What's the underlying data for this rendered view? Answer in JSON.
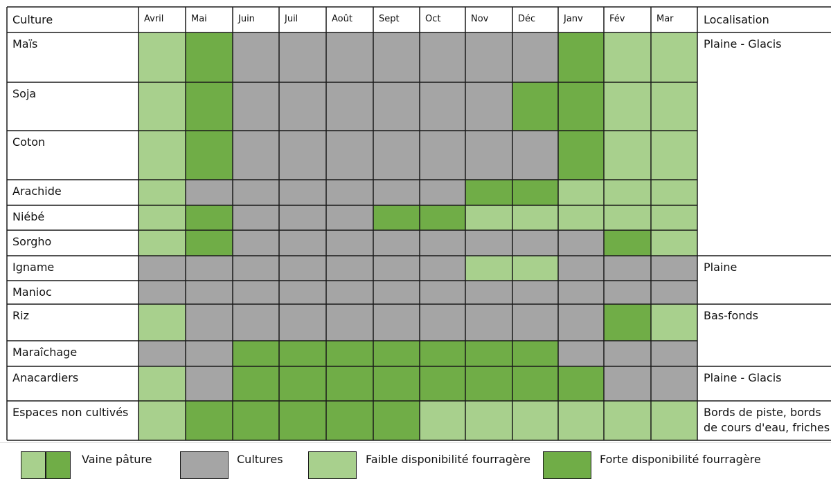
{
  "colors": {
    "light": "#a8d08d",
    "dark": "#70ad47",
    "grey": "#a5a5a5",
    "empty": "#ffffff",
    "border": "#1a1a1a"
  },
  "header": {
    "culture": "Culture",
    "localisation": "Localisation",
    "months": [
      "Avril",
      "Mai",
      "Juin",
      "Juil",
      "Août",
      "Sept",
      "Oct",
      "Nov",
      "Déc",
      "Janv",
      "Fév",
      "Mar"
    ]
  },
  "rows": [
    {
      "name": "Maïs",
      "cells": [
        "L",
        "D",
        "G",
        "G",
        "G",
        "G",
        "G",
        "G",
        "G",
        "D",
        "L",
        "L"
      ]
    },
    {
      "name": "Soja",
      "cells": [
        "L",
        "D",
        "G",
        "G",
        "G",
        "G",
        "G",
        "G",
        "D",
        "D",
        "L",
        "L"
      ]
    },
    {
      "name": "Coton",
      "cells": [
        "L",
        "D",
        "G",
        "G",
        "G",
        "G",
        "G",
        "G",
        "G",
        "D",
        "L",
        "L"
      ]
    },
    {
      "name": "Arachide",
      "cells": [
        "L",
        "G",
        "G",
        "G",
        "G",
        "G",
        "G",
        "D",
        "D",
        "L",
        "L",
        "L"
      ]
    },
    {
      "name": "Niébé",
      "cells": [
        "L",
        "D",
        "G",
        "G",
        "G",
        "D",
        "D",
        "L",
        "L",
        "L",
        "L",
        "L"
      ]
    },
    {
      "name": "Sorgho",
      "cells": [
        "L",
        "D",
        "G",
        "G",
        "G",
        "G",
        "G",
        "G",
        "G",
        "G",
        "D",
        "L"
      ]
    },
    {
      "name": "Igname",
      "cells": [
        "G",
        "G",
        "G",
        "G",
        "G",
        "G",
        "G",
        "L",
        "L",
        "G",
        "G",
        "G"
      ]
    },
    {
      "name": "Manioc",
      "cells": [
        "G",
        "G",
        "G",
        "G",
        "G",
        "G",
        "G",
        "G",
        "G",
        "G",
        "G",
        "G"
      ]
    },
    {
      "name": "Riz",
      "cells": [
        "L",
        "G",
        "G",
        "G",
        "G",
        "G",
        "G",
        "G",
        "G",
        "G",
        "D",
        "L"
      ]
    },
    {
      "name": "Maraîchage",
      "cells": [
        "G",
        "G",
        "D",
        "D",
        "D",
        "D",
        "D",
        "D",
        "D",
        "G",
        "G",
        "G"
      ]
    },
    {
      "name": "Anacardiers",
      "cells": [
        "L",
        "G",
        "D",
        "D",
        "D",
        "D",
        "D",
        "D",
        "D",
        "D",
        "G",
        "G"
      ]
    },
    {
      "name": "Espaces non cultivés",
      "cells": [
        "L",
        "D",
        "D",
        "D",
        "D",
        "D",
        "L",
        "L",
        "L",
        "L",
        "L",
        "L"
      ]
    }
  ],
  "localisations": [
    {
      "rows": [
        0,
        5
      ],
      "lines": [
        "Plaine - Glacis"
      ]
    },
    {
      "rows": [
        6,
        7
      ],
      "lines": [
        "Plaine"
      ]
    },
    {
      "rows": [
        8,
        9
      ],
      "lines": [
        "Bas-fonds"
      ]
    },
    {
      "rows": [
        10,
        10
      ],
      "lines": [
        "Plaine - Glacis"
      ]
    },
    {
      "rows": [
        11,
        11
      ],
      "lines": [
        "Bords de piste, bords",
        "de cours d'eau, friches"
      ]
    }
  ],
  "legend": {
    "vaine_paturage": "Vaine pâture",
    "cultures": "Cultures",
    "faible": "Faible disponibilité fourragère",
    "forte": "Forte disponibilité fourragère"
  }
}
